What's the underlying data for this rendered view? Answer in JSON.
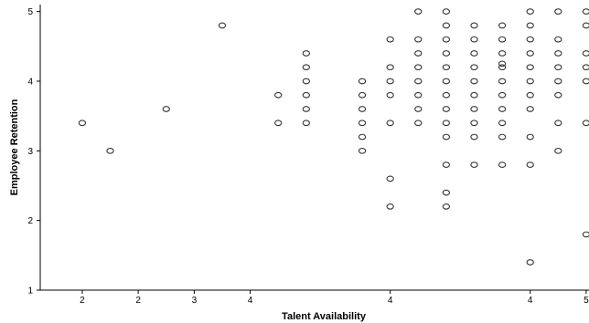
{
  "chart_data": {
    "type": "scatter",
    "title": "",
    "xlabel": "Talent Availability",
    "ylabel": "Employee Retention",
    "x_ticks": [
      "2",
      "2",
      "3",
      "4",
      "4",
      "4",
      "5"
    ],
    "y_ticks": [
      "1",
      "2",
      "3",
      "4",
      "5"
    ],
    "ylim": [
      1,
      5.1
    ],
    "grid": false,
    "legend": "none",
    "marker_color": "#333333",
    "series": [
      {
        "points": [
          {
            "x": 1.6,
            "y": 3.4
          },
          {
            "x": 1.8,
            "y": 3.0
          },
          {
            "x": 2.2,
            "y": 3.6
          },
          {
            "x": 2.6,
            "y": 4.8
          },
          {
            "x": 3.0,
            "y": 3.8
          },
          {
            "x": 3.0,
            "y": 3.4
          },
          {
            "x": 3.2,
            "y": 4.4
          },
          {
            "x": 3.2,
            "y": 4.2
          },
          {
            "x": 3.2,
            "y": 4.0
          },
          {
            "x": 3.2,
            "y": 3.8
          },
          {
            "x": 3.2,
            "y": 3.6
          },
          {
            "x": 3.2,
            "y": 3.4
          },
          {
            "x": 3.6,
            "y": 4.0
          },
          {
            "x": 3.6,
            "y": 3.8
          },
          {
            "x": 3.6,
            "y": 3.6
          },
          {
            "x": 3.6,
            "y": 3.4
          },
          {
            "x": 3.6,
            "y": 3.2
          },
          {
            "x": 3.6,
            "y": 3.0
          },
          {
            "x": 3.8,
            "y": 4.6
          },
          {
            "x": 3.8,
            "y": 4.2
          },
          {
            "x": 3.8,
            "y": 4.0
          },
          {
            "x": 3.8,
            "y": 3.8
          },
          {
            "x": 3.8,
            "y": 3.4
          },
          {
            "x": 3.8,
            "y": 2.6
          },
          {
            "x": 3.8,
            "y": 2.2
          },
          {
            "x": 4.0,
            "y": 5.0
          },
          {
            "x": 4.0,
            "y": 4.6
          },
          {
            "x": 4.0,
            "y": 4.4
          },
          {
            "x": 4.0,
            "y": 4.2
          },
          {
            "x": 4.0,
            "y": 4.0
          },
          {
            "x": 4.0,
            "y": 3.8
          },
          {
            "x": 4.0,
            "y": 3.6
          },
          {
            "x": 4.0,
            "y": 3.4
          },
          {
            "x": 4.2,
            "y": 5.0
          },
          {
            "x": 4.2,
            "y": 4.8
          },
          {
            "x": 4.2,
            "y": 4.6
          },
          {
            "x": 4.2,
            "y": 4.4
          },
          {
            "x": 4.2,
            "y": 4.2
          },
          {
            "x": 4.2,
            "y": 4.0
          },
          {
            "x": 4.2,
            "y": 3.8
          },
          {
            "x": 4.2,
            "y": 3.6
          },
          {
            "x": 4.2,
            "y": 3.4
          },
          {
            "x": 4.2,
            "y": 3.2
          },
          {
            "x": 4.2,
            "y": 2.8
          },
          {
            "x": 4.2,
            "y": 2.4
          },
          {
            "x": 4.2,
            "y": 2.2
          },
          {
            "x": 4.4,
            "y": 4.8
          },
          {
            "x": 4.4,
            "y": 4.6
          },
          {
            "x": 4.4,
            "y": 4.4
          },
          {
            "x": 4.4,
            "y": 4.2
          },
          {
            "x": 4.4,
            "y": 4.0
          },
          {
            "x": 4.4,
            "y": 3.8
          },
          {
            "x": 4.4,
            "y": 3.6
          },
          {
            "x": 4.4,
            "y": 3.4
          },
          {
            "x": 4.4,
            "y": 3.2
          },
          {
            "x": 4.4,
            "y": 2.8
          },
          {
            "x": 4.6,
            "y": 4.8
          },
          {
            "x": 4.6,
            "y": 4.6
          },
          {
            "x": 4.6,
            "y": 4.4
          },
          {
            "x": 4.6,
            "y": 4.25
          },
          {
            "x": 4.6,
            "y": 4.2
          },
          {
            "x": 4.6,
            "y": 4.0
          },
          {
            "x": 4.6,
            "y": 3.8
          },
          {
            "x": 4.6,
            "y": 3.6
          },
          {
            "x": 4.6,
            "y": 3.4
          },
          {
            "x": 4.6,
            "y": 3.2
          },
          {
            "x": 4.6,
            "y": 2.8
          },
          {
            "x": 4.8,
            "y": 5.0
          },
          {
            "x": 4.8,
            "y": 4.8
          },
          {
            "x": 4.8,
            "y": 4.6
          },
          {
            "x": 4.8,
            "y": 4.4
          },
          {
            "x": 4.8,
            "y": 4.2
          },
          {
            "x": 4.8,
            "y": 4.0
          },
          {
            "x": 4.8,
            "y": 3.8
          },
          {
            "x": 4.8,
            "y": 3.6
          },
          {
            "x": 4.8,
            "y": 3.2
          },
          {
            "x": 4.8,
            "y": 2.8
          },
          {
            "x": 4.8,
            "y": 1.4
          },
          {
            "x": 5.0,
            "y": 5.0
          },
          {
            "x": 5.0,
            "y": 4.6
          },
          {
            "x": 5.0,
            "y": 4.4
          },
          {
            "x": 5.0,
            "y": 4.2
          },
          {
            "x": 5.0,
            "y": 4.0
          },
          {
            "x": 5.0,
            "y": 3.8
          },
          {
            "x": 5.0,
            "y": 3.4
          },
          {
            "x": 5.0,
            "y": 3.0
          },
          {
            "x": 5.2,
            "y": 5.0
          },
          {
            "x": 5.2,
            "y": 4.8
          },
          {
            "x": 5.2,
            "y": 4.4
          },
          {
            "x": 5.2,
            "y": 4.2
          },
          {
            "x": 5.2,
            "y": 4.0
          },
          {
            "x": 5.2,
            "y": 3.4
          },
          {
            "x": 5.2,
            "y": 1.8
          }
        ]
      }
    ]
  }
}
